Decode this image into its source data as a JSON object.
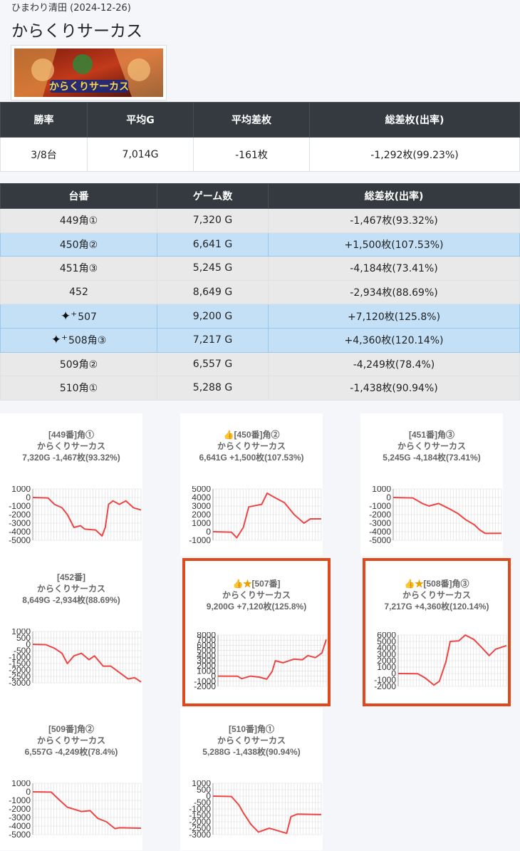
{
  "header": {
    "store_date": "ひまわり清田 (2024-12-26)",
    "title": "からくりサーカス",
    "banner_alt": "からくりサーカス"
  },
  "summary": {
    "headers": [
      "勝率",
      "平均G",
      "平均差枚",
      "総差枚(出率)"
    ],
    "values": [
      "3/8台",
      "7,014G",
      "-161枚",
      "-1,292枚(99.23%)"
    ]
  },
  "machines": {
    "headers": [
      "台番",
      "ゲーム数",
      "総差枚(出率)"
    ],
    "rows": [
      {
        "no": "449角①",
        "games": "7,320 G",
        "total": "-1,467枚(93.32%)",
        "style": "gray",
        "sparkle": false
      },
      {
        "no": "450角②",
        "games": "6,641 G",
        "total": "+1,500枚(107.53%)",
        "style": "blue",
        "sparkle": false
      },
      {
        "no": "451角③",
        "games": "5,245 G",
        "total": "-4,184枚(73.41%)",
        "style": "gray",
        "sparkle": false
      },
      {
        "no": "452",
        "games": "8,649 G",
        "total": "-2,934枚(88.69%)",
        "style": "gray",
        "sparkle": false
      },
      {
        "no": "507",
        "games": "9,200 G",
        "total": "+7,120枚(125.8%)",
        "style": "blue",
        "sparkle": true
      },
      {
        "no": "508角③",
        "games": "7,217 G",
        "total": "+4,360枚(120.14%)",
        "style": "blue",
        "sparkle": true
      },
      {
        "no": "509角②",
        "games": "6,557 G",
        "total": "-4,249枚(78.4%)",
        "style": "gray",
        "sparkle": false
      },
      {
        "no": "510角①",
        "games": "5,288 G",
        "total": "-1,438枚(90.94%)",
        "style": "gray",
        "sparkle": false
      }
    ]
  },
  "charts": [
    {
      "title": "[449番]角①",
      "machine": "からくりサーカス",
      "stats": "7,320G -1,467枚(93.32%)",
      "ticks": [
        "1000",
        "0",
        "-1000",
        "-2000",
        "-3000",
        "-4000",
        "-5000"
      ],
      "ymin": -5000,
      "ymax": 1000,
      "series": [
        [
          0,
          0
        ],
        [
          0.14,
          -50
        ],
        [
          0.2,
          -800
        ],
        [
          0.27,
          -1200
        ],
        [
          0.32,
          -2000
        ],
        [
          0.38,
          -3500
        ],
        [
          0.44,
          -3300
        ],
        [
          0.48,
          -3700
        ],
        [
          0.58,
          -3800
        ],
        [
          0.64,
          -4500
        ],
        [
          0.67,
          -3500
        ],
        [
          0.7,
          -800
        ],
        [
          0.74,
          -400
        ],
        [
          0.8,
          -800
        ],
        [
          0.86,
          -400
        ],
        [
          0.93,
          -1200
        ],
        [
          1,
          -1467
        ]
      ],
      "highlight": false
    },
    {
      "title": "[450番]角②",
      "machine": "からくりサーカス",
      "stats": "6,641G +1,500枚(107.53%)",
      "ticks": [
        "5000",
        "4000",
        "3000",
        "2000",
        "1000",
        "0",
        "-1000"
      ],
      "ymin": -1000,
      "ymax": 5000,
      "series": [
        [
          0,
          0
        ],
        [
          0.17,
          -50
        ],
        [
          0.22,
          -700
        ],
        [
          0.28,
          500
        ],
        [
          0.33,
          2900
        ],
        [
          0.45,
          3200
        ],
        [
          0.5,
          4500
        ],
        [
          0.57,
          4000
        ],
        [
          0.66,
          3400
        ],
        [
          0.75,
          2000
        ],
        [
          0.84,
          1000
        ],
        [
          0.9,
          1500
        ],
        [
          1,
          1500
        ]
      ],
      "highlight": false
    },
    {
      "title": "[451番]角③",
      "machine": "からくりサーカス",
      "stats": "5,245G -4,184枚(73.41%)",
      "ticks": [
        "1000",
        "0",
        "-1000",
        "-2000",
        "-3000",
        "-4000",
        "-5000"
      ],
      "ymin": -5000,
      "ymax": 1000,
      "series": [
        [
          0,
          0
        ],
        [
          0.18,
          -50
        ],
        [
          0.27,
          -700
        ],
        [
          0.33,
          -1000
        ],
        [
          0.42,
          -700
        ],
        [
          0.53,
          -1400
        ],
        [
          0.6,
          -1900
        ],
        [
          0.67,
          -2600
        ],
        [
          0.75,
          -3200
        ],
        [
          0.8,
          -3800
        ],
        [
          0.85,
          -4200
        ],
        [
          1,
          -4184
        ]
      ],
      "highlight": false
    },
    {
      "title": "[452番]",
      "machine": "からくりサーカス",
      "stats": "8,649G -2,934枚(88.69%)",
      "ticks": [
        "1000",
        "500",
        "0",
        "-500",
        "-1000",
        "-1500",
        "-2000",
        "-2500",
        "-3000"
      ],
      "ymin": -3000,
      "ymax": 1000,
      "series": [
        [
          0,
          0
        ],
        [
          0.12,
          -30
        ],
        [
          0.2,
          -300
        ],
        [
          0.27,
          -700
        ],
        [
          0.32,
          -1500
        ],
        [
          0.38,
          -900
        ],
        [
          0.45,
          -700
        ],
        [
          0.52,
          -1200
        ],
        [
          0.57,
          -900
        ],
        [
          0.65,
          -1700
        ],
        [
          0.72,
          -1700
        ],
        [
          0.8,
          -2200
        ],
        [
          0.88,
          -2700
        ],
        [
          0.94,
          -2600
        ],
        [
          1,
          -2934
        ]
      ],
      "highlight": false
    },
    {
      "title": "[507番]",
      "machine": "からくりサーカス",
      "stats": "9,200G +7,120枚(125.8%)",
      "ticks": [
        "8000",
        "7000",
        "6000",
        "5000",
        "4000",
        "3000",
        "2000",
        "1000",
        "0",
        "-1000",
        "-2000"
      ],
      "ymin": -2000,
      "ymax": 8000,
      "series": [
        [
          0,
          0
        ],
        [
          0.18,
          -30
        ],
        [
          0.22,
          -500
        ],
        [
          0.3,
          0
        ],
        [
          0.38,
          -200
        ],
        [
          0.45,
          -600
        ],
        [
          0.5,
          900
        ],
        [
          0.53,
          3000
        ],
        [
          0.6,
          2600
        ],
        [
          0.7,
          3300
        ],
        [
          0.78,
          3200
        ],
        [
          0.83,
          4000
        ],
        [
          0.9,
          3600
        ],
        [
          0.96,
          4500
        ],
        [
          1,
          7120
        ]
      ],
      "highlight": true
    },
    {
      "title": "[508番]角③",
      "machine": "からくりサーカス",
      "stats": "7,217G +4,360枚(120.14%)",
      "ticks": [
        "6000",
        "5000",
        "4000",
        "3000",
        "2000",
        "1000",
        "0",
        "-1000",
        "-2000"
      ],
      "ymin": -2000,
      "ymax": 6000,
      "series": [
        [
          0,
          0
        ],
        [
          0.18,
          -20
        ],
        [
          0.25,
          -700
        ],
        [
          0.33,
          -1800
        ],
        [
          0.38,
          -1200
        ],
        [
          0.44,
          1800
        ],
        [
          0.48,
          5000
        ],
        [
          0.56,
          5100
        ],
        [
          0.62,
          6000
        ],
        [
          0.7,
          5300
        ],
        [
          0.78,
          3900
        ],
        [
          0.84,
          2800
        ],
        [
          0.9,
          3800
        ],
        [
          1,
          4360
        ]
      ],
      "highlight": true
    },
    {
      "title": "[509番]角②",
      "machine": "からくりサーカス",
      "stats": "6,557G -4,249枚(78.4%)",
      "ticks": [
        "1000",
        "0",
        "-1000",
        "-2000",
        "-3000",
        "-4000",
        "-5000"
      ],
      "ymin": -5000,
      "ymax": 1000,
      "series": [
        [
          0,
          0
        ],
        [
          0.17,
          -30
        ],
        [
          0.25,
          -1000
        ],
        [
          0.32,
          -1800
        ],
        [
          0.45,
          -2300
        ],
        [
          0.53,
          -2200
        ],
        [
          0.6,
          -3100
        ],
        [
          0.68,
          -3500
        ],
        [
          0.76,
          -4300
        ],
        [
          0.8,
          -4200
        ],
        [
          1,
          -4249
        ]
      ],
      "highlight": false
    },
    {
      "title": "[510番]角①",
      "machine": "からくりサーカス",
      "stats": "5,288G -1,438枚(90.94%)",
      "ticks": [
        "1000",
        "500",
        "0",
        "-500",
        "-1000",
        "-1500",
        "-2000",
        "-2500",
        "-3000"
      ],
      "ymin": -3000,
      "ymax": 1000,
      "series": [
        [
          0,
          0
        ],
        [
          0.17,
          -30
        ],
        [
          0.24,
          -700
        ],
        [
          0.28,
          -1300
        ],
        [
          0.35,
          -2200
        ],
        [
          0.42,
          -2800
        ],
        [
          0.52,
          -2500
        ],
        [
          0.6,
          -2700
        ],
        [
          0.68,
          -2900
        ],
        [
          0.72,
          -1600
        ],
        [
          0.78,
          -1400
        ],
        [
          1,
          -1438
        ]
      ],
      "highlight": false
    }
  ],
  "colors": {
    "line": "#ef4444",
    "highlight_border": "#dd4a1e"
  }
}
